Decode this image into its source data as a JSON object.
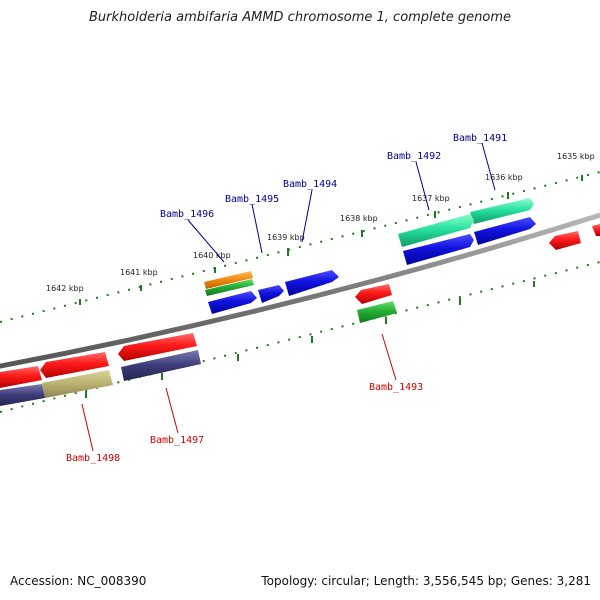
{
  "title": "Burkholderia ambifaria AMMD chromosome 1, complete genome",
  "footer": {
    "accession": "Accession: NC_008390",
    "topology": "Topology: circular; Length: 3,556,545 bp; Genes: 3,281"
  },
  "colors": {
    "backbone": "#808080",
    "tick": "#1a7f1a",
    "label_forward": "#00008b",
    "label_reverse": "#cc0000",
    "red": "#ee1111",
    "blue": "#1111dd",
    "green": "#22aa33",
    "orange": "#ee8811",
    "aqua": "#22dd99",
    "purple": "#3c3c78",
    "olive": "#b8b070"
  },
  "kbp_labels": [
    "1635 kbp",
    "1636 kbp",
    "1637 kbp",
    "1638 kbp",
    "1639 kbp",
    "1640 kbp",
    "1641 kbp",
    "1642 kbp"
  ],
  "gene_labels": [
    {
      "text": "Bamb_1491",
      "strand": "forward"
    },
    {
      "text": "Bamb_1492",
      "strand": "forward"
    },
    {
      "text": "Bamb_1494",
      "strand": "forward"
    },
    {
      "text": "Bamb_1495",
      "strand": "forward"
    },
    {
      "text": "Bamb_1496",
      "strand": "forward"
    },
    {
      "text": "Bamb_1493",
      "strand": "reverse"
    },
    {
      "text": "Bamb_1497",
      "strand": "reverse"
    },
    {
      "text": "Bamb_1498",
      "strand": "reverse"
    }
  ]
}
